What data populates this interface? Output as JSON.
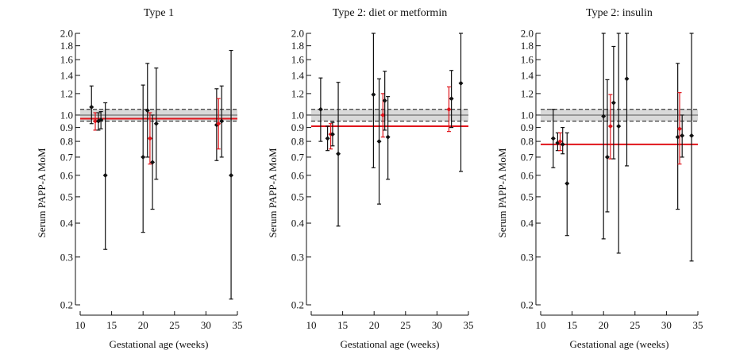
{
  "colors": {
    "ink": "#111111",
    "reference_line": "#e0141b",
    "reference_band": "#d9d9d9",
    "red_points": "#e0141b"
  },
  "chart_data": [
    {
      "type": "scatter",
      "title": "Type 1",
      "xlabel": "Gestational age (weeks)",
      "ylabel": "Serum PAPP-A MoM",
      "x_ticks": [
        "10",
        "15",
        "20",
        "25",
        "30",
        "35"
      ],
      "y_ticks": [
        "0.2",
        "0.3",
        "0.4",
        "0.5",
        "0.6",
        "0.7",
        "0.8",
        "0.9",
        "1.0",
        "1.2",
        "1.4",
        "1.6",
        "1.8",
        "2.0"
      ],
      "xlim": [
        10,
        35
      ],
      "ylim": [
        0.2,
        2.0
      ],
      "yscale": "log",
      "reference": {
        "median": 1.0,
        "band": [
          0.95,
          1.05
        ]
      },
      "group_median": 0.97,
      "points": [
        {
          "x": 11.8,
          "y": 1.07,
          "low": 0.93,
          "high": 1.28,
          "color": "black"
        },
        {
          "x": 12.4,
          "y": 0.95,
          "low": 0.88,
          "high": 1.02,
          "color": "red"
        },
        {
          "x": 12.9,
          "y": 0.95,
          "low": 0.88,
          "high": 1.02,
          "color": "black"
        },
        {
          "x": 13.3,
          "y": 0.96,
          "low": 0.89,
          "high": 1.03,
          "color": "black"
        },
        {
          "x": 14.0,
          "y": 0.6,
          "low": 0.32,
          "high": 1.11,
          "color": "black"
        },
        {
          "x": 20.0,
          "y": 0.7,
          "low": 0.37,
          "high": 1.29,
          "color": "black"
        },
        {
          "x": 20.7,
          "y": 1.04,
          "low": 0.7,
          "high": 1.55,
          "color": "black"
        },
        {
          "x": 21.1,
          "y": 0.82,
          "low": 0.66,
          "high": 1.02,
          "color": "red"
        },
        {
          "x": 21.5,
          "y": 0.67,
          "low": 0.45,
          "high": 1.0,
          "color": "black"
        },
        {
          "x": 22.1,
          "y": 0.93,
          "low": 0.58,
          "high": 1.49,
          "color": "black"
        },
        {
          "x": 31.7,
          "y": 0.92,
          "low": 0.68,
          "high": 1.25,
          "color": "black"
        },
        {
          "x": 32.0,
          "y": 0.93,
          "low": 0.75,
          "high": 1.15,
          "color": "red"
        },
        {
          "x": 32.5,
          "y": 0.95,
          "low": 0.7,
          "high": 1.28,
          "color": "black"
        },
        {
          "x": 34.0,
          "y": 0.6,
          "low": 0.21,
          "high": 1.73,
          "color": "black"
        }
      ]
    },
    {
      "type": "scatter",
      "title": "Type 2: diet or metformin",
      "xlabel": "Gestational age (weeks)",
      "ylabel": "Serum PAPP-A MoM",
      "x_ticks": [
        "10",
        "15",
        "20",
        "25",
        "30",
        "35"
      ],
      "y_ticks": [
        "0.2",
        "0.3",
        "0.4",
        "0.5",
        "0.6",
        "0.7",
        "0.8",
        "0.9",
        "1.0",
        "1.2",
        "1.4",
        "1.6",
        "1.8",
        "2.0"
      ],
      "xlim": [
        10,
        35
      ],
      "ylim": [
        0.2,
        2.0
      ],
      "yscale": "log",
      "reference": {
        "median": 1.0,
        "band": [
          0.95,
          1.05
        ]
      },
      "group_median": 0.91,
      "points": [
        {
          "x": 11.5,
          "y": 1.05,
          "low": 0.8,
          "high": 1.37,
          "color": "black"
        },
        {
          "x": 12.6,
          "y": 0.82,
          "low": 0.74,
          "high": 0.91,
          "color": "black"
        },
        {
          "x": 13.1,
          "y": 0.85,
          "low": 0.75,
          "high": 0.93,
          "color": "red"
        },
        {
          "x": 13.4,
          "y": 0.85,
          "low": 0.77,
          "high": 0.94,
          "color": "black"
        },
        {
          "x": 14.3,
          "y": 0.72,
          "low": 0.39,
          "high": 1.32,
          "color": "black"
        },
        {
          "x": 19.9,
          "y": 1.19,
          "low": 0.64,
          "high": 2.0,
          "color": "black"
        },
        {
          "x": 20.8,
          "y": 0.8,
          "low": 0.47,
          "high": 1.36,
          "color": "black"
        },
        {
          "x": 21.4,
          "y": 1.0,
          "low": 0.83,
          "high": 1.2,
          "color": "red"
        },
        {
          "x": 21.7,
          "y": 1.13,
          "low": 0.88,
          "high": 1.45,
          "color": "black"
        },
        {
          "x": 22.2,
          "y": 0.83,
          "low": 0.58,
          "high": 1.17,
          "color": "black"
        },
        {
          "x": 31.9,
          "y": 1.05,
          "low": 0.87,
          "high": 1.27,
          "color": "red"
        },
        {
          "x": 32.3,
          "y": 1.15,
          "low": 0.9,
          "high": 1.46,
          "color": "black"
        },
        {
          "x": 33.8,
          "y": 1.31,
          "low": 0.62,
          "high": 2.0,
          "color": "black"
        }
      ]
    },
    {
      "type": "scatter",
      "title": "Type 2: insulin",
      "xlabel": "Gestational age (weeks)",
      "ylabel": "Serum PAPP-A MoM",
      "x_ticks": [
        "10",
        "15",
        "20",
        "25",
        "30",
        "35"
      ],
      "y_ticks": [
        "0.2",
        "0.3",
        "0.4",
        "0.5",
        "0.6",
        "0.7",
        "0.8",
        "0.9",
        "1.0",
        "1.2",
        "1.4",
        "1.6",
        "1.8",
        "2.0"
      ],
      "xlim": [
        10,
        35
      ],
      "ylim": [
        0.2,
        2.0
      ],
      "yscale": "log",
      "reference": {
        "median": 1.0,
        "band": [
          0.95,
          1.05
        ]
      },
      "group_median": 0.78,
      "points": [
        {
          "x": 12.0,
          "y": 0.82,
          "low": 0.64,
          "high": 1.05,
          "color": "black"
        },
        {
          "x": 12.7,
          "y": 0.79,
          "low": 0.74,
          "high": 0.86,
          "color": "black"
        },
        {
          "x": 13.1,
          "y": 0.8,
          "low": 0.74,
          "high": 0.86,
          "color": "red"
        },
        {
          "x": 13.5,
          "y": 0.78,
          "low": 0.72,
          "high": 0.9,
          "color": "black"
        },
        {
          "x": 14.2,
          "y": 0.56,
          "low": 0.36,
          "high": 0.86,
          "color": "black"
        },
        {
          "x": 20.0,
          "y": 0.99,
          "low": 0.35,
          "high": 2.0,
          "color": "black"
        },
        {
          "x": 20.6,
          "y": 0.7,
          "low": 0.44,
          "high": 1.35,
          "color": "black"
        },
        {
          "x": 21.1,
          "y": 0.91,
          "low": 0.69,
          "high": 1.19,
          "color": "red"
        },
        {
          "x": 21.6,
          "y": 1.11,
          "low": 0.69,
          "high": 1.79,
          "color": "black"
        },
        {
          "x": 22.4,
          "y": 0.91,
          "low": 0.31,
          "high": 2.0,
          "color": "black"
        },
        {
          "x": 23.7,
          "y": 1.36,
          "low": 0.65,
          "high": 2.0,
          "color": "black"
        },
        {
          "x": 31.8,
          "y": 0.83,
          "low": 0.45,
          "high": 1.55,
          "color": "black"
        },
        {
          "x": 32.1,
          "y": 0.89,
          "low": 0.66,
          "high": 1.21,
          "color": "red"
        },
        {
          "x": 32.5,
          "y": 0.84,
          "low": 0.7,
          "high": 1.0,
          "color": "black"
        },
        {
          "x": 34.0,
          "y": 0.84,
          "low": 0.29,
          "high": 2.0,
          "color": "black"
        }
      ]
    }
  ]
}
